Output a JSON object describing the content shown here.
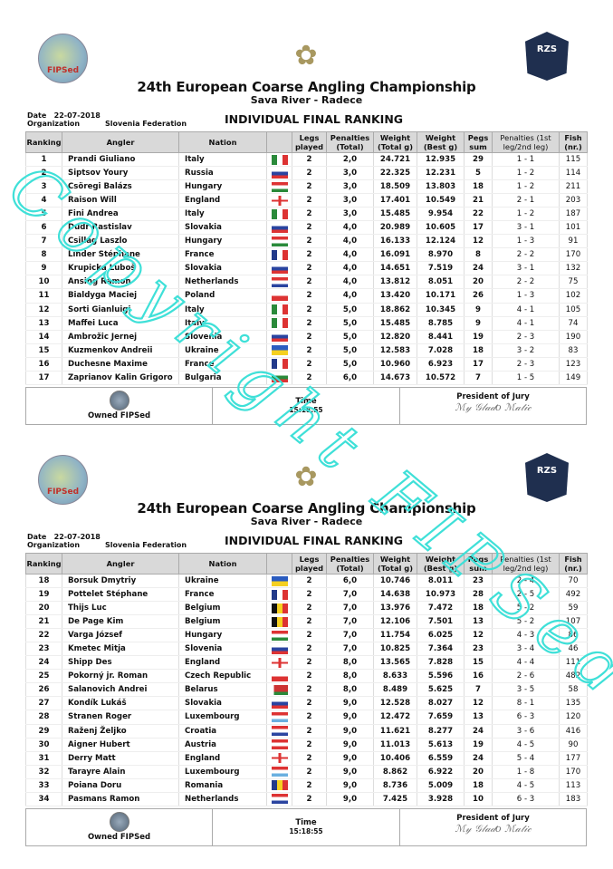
{
  "header": {
    "left_logo_text": "FIPSed",
    "right_logo_text": "RZS",
    "title": "24th European Coarse Angling Championship",
    "subtitle": "Sava River - Radece",
    "date_label": "Date",
    "date": "22-07-2018",
    "org_label": "Organization",
    "org": "Slovenia Federation",
    "ranking_title": "INDIVIDUAL FINAL RANKING"
  },
  "columns": [
    "Ranking",
    "Angler",
    "Nation",
    "",
    "Legs played",
    "Penalties (Total)",
    "Weight (Total g)",
    "Weight (Best g)",
    "Pegs sum",
    "Penalties (1st leg/2nd leg)",
    "Fish (nr.)"
  ],
  "footer": {
    "owner": "Owned FIPSed",
    "time_label": "Time",
    "time": "15:18:55",
    "president_label": "President of Jury",
    "signature": "signature"
  },
  "watermark": "Copyright FIPSed",
  "pages": [
    {
      "rows": [
        [
          "1",
          "Prandi Giuliano",
          "Italy",
          "italy",
          "2",
          "2,0",
          "24.721",
          "12.935",
          "29",
          "1 - 1",
          "115"
        ],
        [
          "2",
          "Siptsov Youry",
          "Russia",
          "russia",
          "2",
          "3,0",
          "22.325",
          "12.231",
          "5",
          "1 - 2",
          "114"
        ],
        [
          "3",
          "Csöregi Balázs",
          "Hungary",
          "hungary",
          "2",
          "3,0",
          "18.509",
          "13.803",
          "18",
          "1 - 2",
          "211"
        ],
        [
          "4",
          "Raison Will",
          "England",
          "england",
          "2",
          "3,0",
          "17.401",
          "10.549",
          "21",
          "2 - 1",
          "203"
        ],
        [
          "5",
          "Fini Andrea",
          "Italy",
          "italy",
          "2",
          "3,0",
          "15.485",
          "9.954",
          "22",
          "1 - 2",
          "187"
        ],
        [
          "6",
          "Dudr Rastislav",
          "Slovakia",
          "slovakia",
          "2",
          "4,0",
          "20.989",
          "10.605",
          "17",
          "3 - 1",
          "101"
        ],
        [
          "7",
          "Csillag Laszlo",
          "Hungary",
          "hungary",
          "2",
          "4,0",
          "16.133",
          "12.124",
          "12",
          "1 - 3",
          "91"
        ],
        [
          "8",
          "Linder Stéphane",
          "France",
          "france",
          "2",
          "4,0",
          "16.091",
          "8.970",
          "8",
          "2 - 2",
          "170"
        ],
        [
          "9",
          "Krupicka Luboš",
          "Slovakia",
          "slovakia",
          "2",
          "4,0",
          "14.651",
          "7.519",
          "24",
          "3 - 1",
          "132"
        ],
        [
          "10",
          "Ansing Ramon",
          "Netherlands",
          "netherlands",
          "2",
          "4,0",
          "13.812",
          "8.051",
          "20",
          "2 - 2",
          "75"
        ],
        [
          "11",
          "Bialdyga Maciej",
          "Poland",
          "poland",
          "2",
          "4,0",
          "13.420",
          "10.171",
          "26",
          "1 - 3",
          "102"
        ],
        [
          "12",
          "Sorti Gianluigi",
          "Italy",
          "italy",
          "2",
          "5,0",
          "18.862",
          "10.345",
          "9",
          "4 - 1",
          "105"
        ],
        [
          "13",
          "Maffei Luca",
          "Italy",
          "italy",
          "2",
          "5,0",
          "15.485",
          "8.785",
          "9",
          "4 - 1",
          "74"
        ],
        [
          "14",
          "Ambrožic Jernej",
          "Slovenia",
          "slovenia",
          "2",
          "5,0",
          "12.820",
          "8.441",
          "19",
          "2 - 3",
          "190"
        ],
        [
          "15",
          "Kuzmenkov Andreii",
          "Ukraine",
          "ukraine",
          "2",
          "5,0",
          "12.583",
          "7.028",
          "18",
          "3 - 2",
          "83"
        ],
        [
          "16",
          "Duchesne Maxime",
          "France",
          "france",
          "2",
          "5,0",
          "10.960",
          "6.923",
          "17",
          "2 - 3",
          "123"
        ],
        [
          "17",
          "Zaprianov Kalin Grigoro",
          "Bulgaria",
          "bulgaria",
          "2",
          "6,0",
          "14.673",
          "10.572",
          "7",
          "1 - 5",
          "149"
        ]
      ]
    },
    {
      "rows": [
        [
          "18",
          "Borsuk  Dmytriy",
          "Ukraine",
          "ukraine",
          "2",
          "6,0",
          "10.746",
          "8.011",
          "23",
          "2 - 4",
          "70"
        ],
        [
          "19",
          "Pottelet Stéphane",
          "France",
          "france",
          "2",
          "7,0",
          "14.638",
          "10.973",
          "28",
          "2 - 5",
          "492"
        ],
        [
          "20",
          "Thijs Luc",
          "Belgium",
          "belgium",
          "2",
          "7,0",
          "13.976",
          "7.472",
          "18",
          "5 - 2",
          "59"
        ],
        [
          "21",
          "De Page Kim",
          "Belgium",
          "belgium",
          "2",
          "7,0",
          "12.106",
          "7.501",
          "13",
          "5 - 2",
          "107"
        ],
        [
          "22",
          "Varga József",
          "Hungary",
          "hungary",
          "2",
          "7,0",
          "11.754",
          "6.025",
          "12",
          "4 - 3",
          "86"
        ],
        [
          "23",
          "Kmetec Mitja",
          "Slovenia",
          "slovenia",
          "2",
          "7,0",
          "10.825",
          "7.364",
          "23",
          "3 - 4",
          "46"
        ],
        [
          "24",
          "Shipp Des",
          "England",
          "england",
          "2",
          "8,0",
          "13.565",
          "7.828",
          "15",
          "4 - 4",
          "111"
        ],
        [
          "25",
          "Pokorný jr. Roman",
          "Czech Republic",
          "czech",
          "2",
          "8,0",
          "8.633",
          "5.596",
          "16",
          "2 - 6",
          "482"
        ],
        [
          "26",
          "Salanovich Andrei",
          "Belarus",
          "belarus",
          "2",
          "8,0",
          "8.489",
          "5.625",
          "7",
          "3 - 5",
          "58"
        ],
        [
          "27",
          "Kondík Lukáš",
          "Slovakia",
          "slovakia",
          "2",
          "9,0",
          "12.528",
          "8.027",
          "12",
          "8 - 1",
          "135"
        ],
        [
          "28",
          "Stranen Roger",
          "Luxembourg",
          "luxembourg",
          "2",
          "9,0",
          "12.472",
          "7.659",
          "13",
          "6 - 3",
          "120"
        ],
        [
          "29",
          "Raženj Željko",
          "Croatia",
          "croatia",
          "2",
          "9,0",
          "11.621",
          "8.277",
          "24",
          "3 - 6",
          "416"
        ],
        [
          "30",
          "Aigner Hubert",
          "Austria",
          "austria",
          "2",
          "9,0",
          "11.013",
          "5.613",
          "19",
          "4 - 5",
          "90"
        ],
        [
          "31",
          "Derry Matt",
          "England",
          "england",
          "2",
          "9,0",
          "10.406",
          "6.559",
          "24",
          "5 - 4",
          "177"
        ],
        [
          "32",
          "Tarayre  Alain",
          "Luxembourg",
          "luxembourg",
          "2",
          "9,0",
          "8.862",
          "6.922",
          "20",
          "1 - 8",
          "170"
        ],
        [
          "33",
          "Poiana Doru",
          "Romania",
          "romania",
          "2",
          "9,0",
          "8.736",
          "5.009",
          "18",
          "4 - 5",
          "113"
        ],
        [
          "34",
          "Pasmans Ramon",
          "Netherlands",
          "netherlands",
          "2",
          "9,0",
          "7.425",
          "3.928",
          "10",
          "6 - 3",
          "183"
        ]
      ]
    }
  ],
  "watermark_color": "#3fe0d8"
}
